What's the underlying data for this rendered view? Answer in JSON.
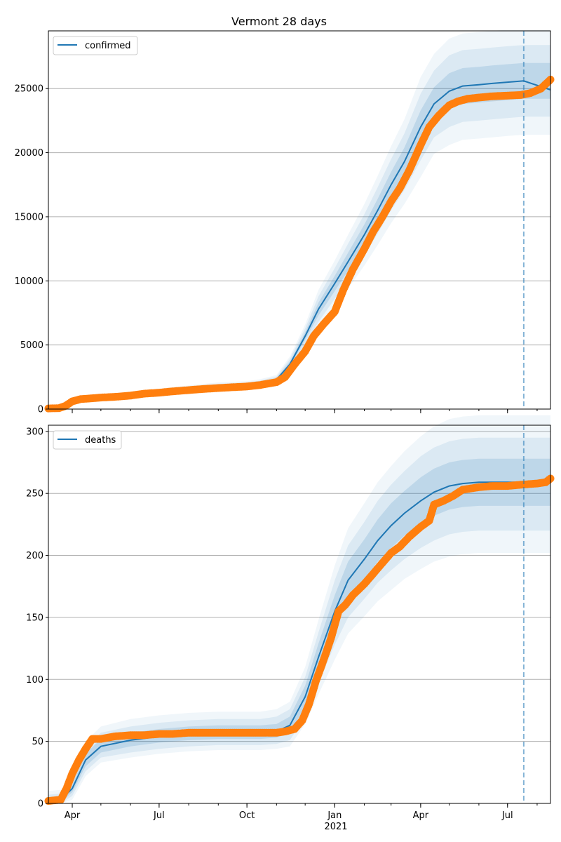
{
  "chart_data": [
    {
      "type": "line",
      "title": "Vermont 28 days",
      "xlabel": "",
      "ylabel": "",
      "x_range": [
        "2020-03-07",
        "2021-08-15"
      ],
      "ylim": [
        0,
        29500
      ],
      "yticks": [
        0,
        5000,
        10000,
        15000,
        20000,
        25000
      ],
      "grid": "horizontal",
      "legend_position": "top-left",
      "forecast_marker_date": "2021-07-18",
      "series": [
        {
          "name": "confirmed",
          "kind": "model",
          "color": "#1f77b4",
          "x": [
            "2020-03-07",
            "2020-03-20",
            "2020-04-01",
            "2020-04-15",
            "2020-05-01",
            "2020-06-01",
            "2020-07-01",
            "2020-08-01",
            "2020-09-01",
            "2020-10-01",
            "2020-10-15",
            "2020-11-01",
            "2020-11-15",
            "2020-12-01",
            "2020-12-15",
            "2021-01-01",
            "2021-01-15",
            "2021-02-01",
            "2021-02-15",
            "2021-03-01",
            "2021-03-15",
            "2021-04-01",
            "2021-04-15",
            "2021-05-01",
            "2021-05-15",
            "2021-06-01",
            "2021-06-15",
            "2021-07-01",
            "2021-07-18",
            "2021-08-15"
          ],
          "y": [
            30,
            100,
            550,
            800,
            950,
            1100,
            1300,
            1550,
            1750,
            1850,
            2000,
            2300,
            3500,
            5700,
            7800,
            9800,
            11500,
            13600,
            15500,
            17500,
            19300,
            22000,
            23800,
            24800,
            25200,
            25300,
            25400,
            25500,
            25600,
            24900
          ],
          "bands": [
            {
              "name": "50%",
              "lower": [
                20,
                80,
                500,
                740,
                880,
                1020,
                1210,
                1450,
                1640,
                1740,
                1890,
                2180,
                3300,
                5400,
                7300,
                9200,
                10800,
                12800,
                14600,
                16500,
                18200,
                20700,
                22500,
                23400,
                23800,
                23900,
                24000,
                24100,
                24200,
                24200
              ],
              "upper": [
                40,
                120,
                600,
                860,
                1020,
                1180,
                1390,
                1650,
                1860,
                1960,
                2110,
                2420,
                3700,
                6000,
                8300,
                10400,
                12200,
                14400,
                16400,
                18500,
                20400,
                23300,
                25100,
                26200,
                26600,
                26700,
                26800,
                26900,
                27000,
                27000
              ]
            },
            {
              "name": "80%",
              "lower": [
                10,
                60,
                440,
                680,
                810,
                940,
                1120,
                1350,
                1530,
                1630,
                1780,
                2060,
                3100,
                5100,
                6800,
                8600,
                10100,
                12000,
                13700,
                15500,
                17100,
                19400,
                21200,
                22000,
                22400,
                22500,
                22600,
                22700,
                22800,
                22800
              ],
              "upper": [
                50,
                140,
                660,
                920,
                1090,
                1260,
                1480,
                1750,
                1970,
                2070,
                2220,
                2540,
                3900,
                6300,
                8800,
                11000,
                12900,
                15200,
                17300,
                19500,
                21500,
                24600,
                26400,
                27600,
                28000,
                28100,
                28200,
                28300,
                28400,
                28400
              ]
            },
            {
              "name": "95%",
              "lower": [
                0,
                40,
                380,
                620,
                740,
                860,
                1030,
                1250,
                1420,
                1520,
                1670,
                1940,
                2900,
                4800,
                6300,
                8000,
                9400,
                11200,
                12800,
                14500,
                16000,
                18100,
                19900,
                20600,
                21000,
                21100,
                21200,
                21300,
                21400,
                21400
              ],
              "upper": [
                60,
                160,
                720,
                980,
                1160,
                1340,
                1570,
                1850,
                2080,
                2180,
                2330,
                2660,
                4100,
                6600,
                9300,
                11600,
                13600,
                16000,
                18200,
                20500,
                22600,
                25900,
                27700,
                28900,
                29300,
                29400,
                29500,
                29600,
                29600,
                29600
              ]
            }
          ]
        },
        {
          "name": "",
          "kind": "observed",
          "color": "#ff7f0e",
          "x": [
            "2020-03-07",
            "2020-03-18",
            "2020-03-25",
            "2020-04-01",
            "2020-04-10",
            "2020-04-20",
            "2020-05-01",
            "2020-05-15",
            "2020-06-01",
            "2020-06-15",
            "2020-07-01",
            "2020-07-15",
            "2020-08-01",
            "2020-08-15",
            "2020-09-01",
            "2020-09-15",
            "2020-10-01",
            "2020-10-15",
            "2020-11-01",
            "2020-11-10",
            "2020-11-20",
            "2020-12-01",
            "2020-12-10",
            "2020-12-20",
            "2021-01-01",
            "2021-01-10",
            "2021-01-20",
            "2021-02-01",
            "2021-02-10",
            "2021-02-20",
            "2021-03-01",
            "2021-03-10",
            "2021-03-20",
            "2021-04-01",
            "2021-04-10",
            "2021-04-20",
            "2021-05-01",
            "2021-05-10",
            "2021-05-20",
            "2021-06-01",
            "2021-06-15",
            "2021-07-01",
            "2021-07-15",
            "2021-07-25",
            "2021-08-05",
            "2021-08-15"
          ],
          "y": [
            50,
            70,
            250,
            600,
            780,
            830,
            900,
            950,
            1050,
            1200,
            1280,
            1380,
            1480,
            1560,
            1640,
            1700,
            1760,
            1880,
            2100,
            2500,
            3500,
            4500,
            5700,
            6600,
            7600,
            9300,
            10900,
            12500,
            13800,
            15000,
            16200,
            17200,
            18600,
            20600,
            22000,
            22900,
            23700,
            24000,
            24200,
            24300,
            24400,
            24450,
            24500,
            24650,
            25000,
            25700
          ]
        }
      ]
    },
    {
      "type": "line",
      "title": "",
      "xlabel": "2021",
      "ylabel": "",
      "x_range": [
        "2020-03-07",
        "2021-08-15"
      ],
      "ylim": [
        0,
        305
      ],
      "yticks": [
        0,
        50,
        100,
        150,
        200,
        250,
        300
      ],
      "xtick_labels": [
        "Apr",
        "Jul",
        "Oct",
        "Jan",
        "Apr",
        "Jul"
      ],
      "xtick_dates": [
        "2020-04-01",
        "2020-07-01",
        "2020-10-01",
        "2021-01-01",
        "2021-04-01",
        "2021-07-01"
      ],
      "grid": "horizontal",
      "legend_position": "top-left",
      "forecast_marker_date": "2021-07-18",
      "series": [
        {
          "name": "deaths",
          "kind": "model",
          "color": "#1f77b4",
          "x": [
            "2020-03-07",
            "2020-03-20",
            "2020-04-01",
            "2020-04-15",
            "2020-05-01",
            "2020-06-01",
            "2020-07-01",
            "2020-08-01",
            "2020-09-01",
            "2020-10-01",
            "2020-10-15",
            "2020-11-01",
            "2020-11-15",
            "2020-12-01",
            "2020-12-15",
            "2021-01-01",
            "2021-01-15",
            "2021-02-01",
            "2021-02-15",
            "2021-03-01",
            "2021-03-15",
            "2021-04-01",
            "2021-04-15",
            "2021-05-01",
            "2021-05-15",
            "2021-06-01",
            "2021-06-15",
            "2021-07-01",
            "2021-07-18",
            "2021-08-15"
          ],
          "y": [
            2,
            3,
            12,
            35,
            46,
            51,
            54,
            56,
            57,
            57,
            57,
            58,
            63,
            86,
            118,
            155,
            180,
            197,
            212,
            224,
            234,
            244,
            251,
            256,
            258,
            259,
            259,
            259,
            259,
            259
          ],
          "bands": [
            {
              "name": "50%",
              "lower": [
                0,
                1,
                9,
                30,
                41,
                46,
                49,
                51,
                52,
                52,
                52,
                53,
                57,
                78,
                108,
                142,
                165,
                181,
                195,
                206,
                216,
                225,
                232,
                237,
                239,
                240,
                240,
                240,
                240,
                240
              ],
              "upper": [
                4,
                5,
                15,
                40,
                52,
                57,
                60,
                62,
                63,
                63,
                63,
                64,
                70,
                95,
                129,
                168,
                195,
                213,
                229,
                242,
                252,
                263,
                270,
                275,
                277,
                278,
                278,
                278,
                278,
                278
              ]
            },
            {
              "name": "80%",
              "lower": [
                0,
                0,
                6,
                26,
                37,
                41,
                44,
                46,
                47,
                47,
                47,
                48,
                51,
                70,
                97,
                128,
                150,
                165,
                178,
                188,
                197,
                206,
                212,
                217,
                219,
                220,
                220,
                220,
                220,
                220
              ],
              "upper": [
                7,
                8,
                18,
                45,
                57,
                62,
                65,
                67,
                68,
                68,
                68,
                70,
                76,
                102,
                138,
                180,
                208,
                227,
                244,
                257,
                268,
                280,
                287,
                292,
                294,
                295,
                295,
                295,
                295,
                295
              ]
            },
            {
              "name": "95%",
              "lower": [
                0,
                0,
                3,
                22,
                33,
                37,
                40,
                42,
                43,
                43,
                43,
                44,
                46,
                64,
                88,
                116,
                137,
                151,
                163,
                172,
                181,
                189,
                195,
                199,
                201,
                202,
                202,
                202,
                202,
                202
              ],
              "upper": [
                10,
                11,
                21,
                50,
                62,
                68,
                71,
                73,
                74,
                74,
                74,
                76,
                82,
                110,
                148,
                192,
                222,
                242,
                259,
                272,
                284,
                296,
                304,
                310,
                312,
                313,
                313,
                313,
                313,
                313
              ]
            }
          ]
        },
        {
          "name": "",
          "kind": "observed",
          "color": "#ff7f0e",
          "x": [
            "2020-03-07",
            "2020-03-20",
            "2020-03-26",
            "2020-04-01",
            "2020-04-08",
            "2020-04-15",
            "2020-04-22",
            "2020-05-01",
            "2020-05-15",
            "2020-06-01",
            "2020-06-15",
            "2020-07-01",
            "2020-07-15",
            "2020-08-01",
            "2020-08-15",
            "2020-09-01",
            "2020-10-01",
            "2020-10-15",
            "2020-11-01",
            "2020-11-10",
            "2020-11-20",
            "2020-11-28",
            "2020-12-05",
            "2020-12-12",
            "2020-12-20",
            "2020-12-28",
            "2021-01-05",
            "2021-01-12",
            "2021-01-20",
            "2021-02-01",
            "2021-02-10",
            "2021-02-20",
            "2021-03-01",
            "2021-03-10",
            "2021-03-20",
            "2021-04-01",
            "2021-04-10",
            "2021-04-15",
            "2021-04-25",
            "2021-05-05",
            "2021-05-15",
            "2021-06-01",
            "2021-06-15",
            "2021-07-01",
            "2021-07-15",
            "2021-08-01",
            "2021-08-10",
            "2021-08-15"
          ],
          "y": [
            2,
            3,
            12,
            24,
            35,
            44,
            52,
            52,
            54,
            55,
            55,
            56,
            56,
            57,
            57,
            57,
            57,
            57,
            57,
            58,
            60,
            67,
            80,
            98,
            115,
            133,
            155,
            160,
            168,
            177,
            185,
            194,
            202,
            207,
            215,
            223,
            228,
            241,
            244,
            248,
            253,
            255,
            256,
            256,
            257,
            258,
            259,
            262
          ]
        }
      ]
    }
  ]
}
